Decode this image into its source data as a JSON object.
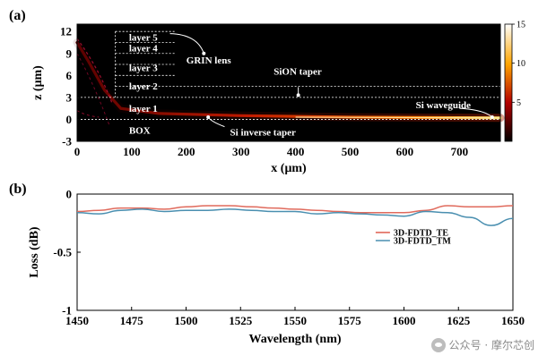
{
  "figure": {
    "watermark": "公众号 · 摩尔芯创"
  },
  "chart_data": [
    {
      "panel_label": "(a)",
      "type": "heatmap",
      "xlabel": "x (μm)",
      "ylabel": "z (μm)",
      "xlim": [
        0,
        775
      ],
      "ylim": [
        -3,
        13
      ],
      "x_ticks": [
        "0",
        "100",
        "200",
        "300",
        "400",
        "500",
        "600",
        "700"
      ],
      "y_ticks": [
        "12",
        "9",
        "6",
        "3",
        "0",
        "-3"
      ],
      "colorbar": {
        "range": [
          0,
          15
        ],
        "ticks": [
          "15",
          "10",
          "5"
        ],
        "colormap": "hot"
      },
      "regions": [
        {
          "label": "layer 5",
          "z": [
            10.5,
            12
          ]
        },
        {
          "label": "layer 4",
          "z": [
            7.5,
            9
          ]
        },
        {
          "label": "layer 3",
          "z": [
            6,
            7.5
          ]
        },
        {
          "label": "layer 2",
          "z": [
            3,
            4.5
          ]
        },
        {
          "label": "layer 1",
          "z": [
            0,
            3
          ]
        },
        {
          "label": "BOX",
          "z": [
            -3,
            0
          ]
        }
      ],
      "annotations": [
        "GRIN lens",
        "SiON taper",
        "Si waveguide",
        "Si inverse taper"
      ],
      "beam": {
        "description": "light enters at the GRIN lens stack and is guided along z≈0.2 μm into the Si waveguide",
        "path": [
          [
            0,
            10.5
          ],
          [
            20,
            8
          ],
          [
            50,
            4
          ],
          [
            80,
            1.5
          ],
          [
            150,
            0.8
          ],
          [
            300,
            0.5
          ],
          [
            500,
            0.3
          ],
          [
            775,
            0.2
          ]
        ],
        "peak_intensity_end": 15
      }
    },
    {
      "panel_label": "(b)",
      "type": "line",
      "xlabel": "Wavelength (nm)",
      "ylabel": "Loss (dB)",
      "xlim": [
        1450,
        1650
      ],
      "ylim": [
        -1,
        0
      ],
      "x_ticks": [
        "1450",
        "1475",
        "1500",
        "1525",
        "1550",
        "1575",
        "1600",
        "1625",
        "1650"
      ],
      "y_ticks": [
        "0",
        "-0.5",
        "-1"
      ],
      "legend_position": "center-right",
      "series": [
        {
          "name": "3D-FDTD_TE",
          "color": "#e06a5c",
          "x": [
            1450,
            1460,
            1470,
            1480,
            1490,
            1500,
            1510,
            1520,
            1530,
            1540,
            1550,
            1560,
            1570,
            1580,
            1590,
            1600,
            1610,
            1620,
            1630,
            1640,
            1650
          ],
          "y": [
            -0.15,
            -0.14,
            -0.12,
            -0.12,
            -0.13,
            -0.11,
            -0.1,
            -0.1,
            -0.11,
            -0.12,
            -0.13,
            -0.14,
            -0.15,
            -0.16,
            -0.16,
            -0.16,
            -0.14,
            -0.1,
            -0.11,
            -0.11,
            -0.1
          ]
        },
        {
          "name": "3D-FDTD_TM",
          "color": "#4a8fb0",
          "x": [
            1450,
            1460,
            1470,
            1480,
            1490,
            1500,
            1510,
            1520,
            1530,
            1540,
            1550,
            1560,
            1570,
            1580,
            1590,
            1600,
            1610,
            1620,
            1630,
            1640,
            1650
          ],
          "y": [
            -0.16,
            -0.17,
            -0.14,
            -0.13,
            -0.15,
            -0.14,
            -0.14,
            -0.13,
            -0.14,
            -0.15,
            -0.15,
            -0.17,
            -0.16,
            -0.17,
            -0.18,
            -0.19,
            -0.15,
            -0.16,
            -0.2,
            -0.27,
            -0.21
          ]
        }
      ]
    }
  ]
}
